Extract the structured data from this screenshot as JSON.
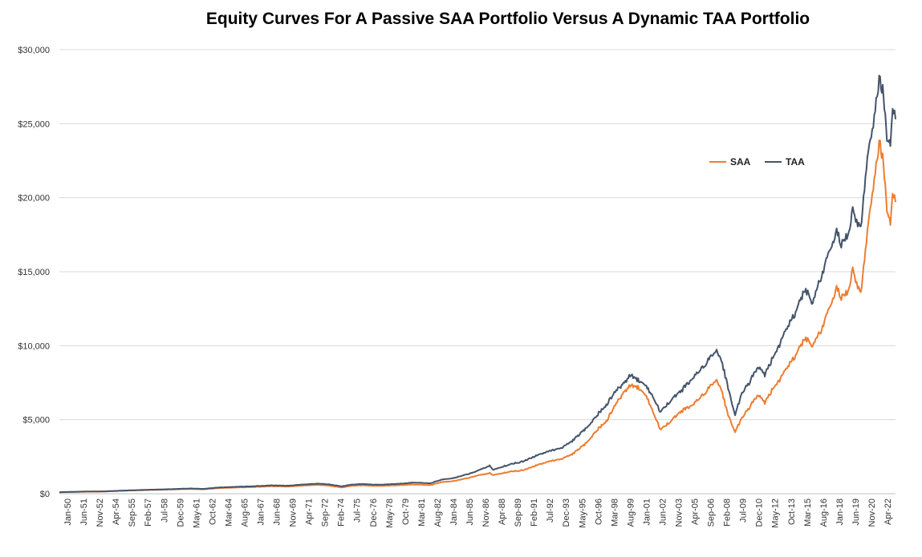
{
  "chart_data": {
    "type": "line",
    "title": "Equity Curves For A Passive SAA Portfolio Versus A Dynamic TAA Portfolio",
    "xlabel": "",
    "ylabel": "",
    "ylim": [
      0,
      30000
    ],
    "y_ticks": [
      0,
      5000,
      10000,
      15000,
      20000,
      25000,
      30000
    ],
    "y_tick_labels": [
      "$0",
      "$5,000",
      "$10,000",
      "$15,000",
      "$20,000",
      "$25,000",
      "$30,000"
    ],
    "x_tick_labels": [
      "Jan-50",
      "Jun-51",
      "Nov-52",
      "Apr-54",
      "Sep-55",
      "Feb-57",
      "Jul-58",
      "Dec-59",
      "May-61",
      "Oct-62",
      "Mar-64",
      "Aug-65",
      "Jan-67",
      "Jun-68",
      "Nov-69",
      "Apr-71",
      "Sep-72",
      "Feb-74",
      "Jul-75",
      "Dec-76",
      "May-78",
      "Oct-79",
      "Mar-81",
      "Aug-82",
      "Jan-84",
      "Jun-85",
      "Nov-86",
      "Apr-88",
      "Sep-89",
      "Feb-91",
      "Jul-92",
      "Dec-93",
      "May-95",
      "Oct-96",
      "Mar-98",
      "Aug-99",
      "Jan-01",
      "Jun-02",
      "Nov-03",
      "Apr-05",
      "Sep-06",
      "Feb-08",
      "Jul-09",
      "Dec-10",
      "May-12",
      "Oct-13",
      "Mar-15",
      "Aug-16",
      "Jan-18",
      "Jun-19",
      "Nov-20",
      "Apr-22"
    ],
    "x_range": [
      1950.0,
      2023.25
    ],
    "grid": true,
    "legend_position": "top-right",
    "series": [
      {
        "name": "SAA",
        "color": "#ED7D31",
        "points": [
          [
            1950.0,
            100
          ],
          [
            1952.0,
            130
          ],
          [
            1954.0,
            150
          ],
          [
            1956.0,
            210
          ],
          [
            1958.0,
            250
          ],
          [
            1960.0,
            290
          ],
          [
            1961.5,
            320
          ],
          [
            1962.5,
            290
          ],
          [
            1964.0,
            380
          ],
          [
            1966.0,
            430
          ],
          [
            1967.0,
            450
          ],
          [
            1968.5,
            500
          ],
          [
            1970.0,
            480
          ],
          [
            1971.0,
            530
          ],
          [
            1972.5,
            600
          ],
          [
            1973.5,
            550
          ],
          [
            1974.75,
            420
          ],
          [
            1975.5,
            520
          ],
          [
            1976.5,
            560
          ],
          [
            1978.0,
            520
          ],
          [
            1980.0,
            580
          ],
          [
            1981.0,
            620
          ],
          [
            1982.5,
            580
          ],
          [
            1983.5,
            780
          ],
          [
            1984.5,
            850
          ],
          [
            1985.5,
            1000
          ],
          [
            1986.5,
            1200
          ],
          [
            1987.7,
            1400
          ],
          [
            1988.0,
            1250
          ],
          [
            1989.5,
            1500
          ],
          [
            1990.7,
            1600
          ],
          [
            1991.5,
            1850
          ],
          [
            1993.0,
            2200
          ],
          [
            1994.0,
            2350
          ],
          [
            1995.0,
            2700
          ],
          [
            1996.0,
            3300
          ],
          [
            1997.0,
            4200
          ],
          [
            1998.0,
            5000
          ],
          [
            1998.7,
            6000
          ],
          [
            1999.5,
            6900
          ],
          [
            2000.0,
            7300
          ],
          [
            2000.7,
            7200
          ],
          [
            2001.5,
            6500
          ],
          [
            2002.0,
            5500
          ],
          [
            2002.7,
            4300
          ],
          [
            2003.5,
            4900
          ],
          [
            2004.5,
            5600
          ],
          [
            2005.5,
            6000
          ],
          [
            2006.5,
            6800
          ],
          [
            2007.5,
            7700
          ],
          [
            2008.0,
            7100
          ],
          [
            2008.5,
            5500
          ],
          [
            2009.2,
            4150
          ],
          [
            2009.8,
            5200
          ],
          [
            2010.5,
            5900
          ],
          [
            2011.2,
            6700
          ],
          [
            2011.8,
            6200
          ],
          [
            2012.5,
            7100
          ],
          [
            2013.5,
            8200
          ],
          [
            2014.5,
            9300
          ],
          [
            2015.3,
            10500
          ],
          [
            2016.0,
            10000
          ],
          [
            2016.7,
            11000
          ],
          [
            2017.5,
            12500
          ],
          [
            2018.1,
            13800
          ],
          [
            2018.5,
            13300
          ],
          [
            2019.0,
            13500
          ],
          [
            2019.5,
            15000
          ],
          [
            2020.2,
            13500
          ],
          [
            2020.7,
            17000
          ],
          [
            2021.3,
            21000
          ],
          [
            2021.9,
            23800
          ],
          [
            2022.2,
            22000
          ],
          [
            2022.5,
            19500
          ],
          [
            2022.8,
            18400
          ],
          [
            2023.0,
            20500
          ],
          [
            2023.25,
            19700
          ]
        ]
      },
      {
        "name": "TAA",
        "color": "#44546A",
        "points": [
          [
            1950.0,
            100
          ],
          [
            1952.0,
            140
          ],
          [
            1954.0,
            160
          ],
          [
            1956.0,
            220
          ],
          [
            1958.0,
            270
          ],
          [
            1960.0,
            310
          ],
          [
            1961.5,
            350
          ],
          [
            1962.5,
            320
          ],
          [
            1964.0,
            420
          ],
          [
            1966.0,
            480
          ],
          [
            1967.0,
            500
          ],
          [
            1968.5,
            560
          ],
          [
            1970.0,
            540
          ],
          [
            1971.0,
            600
          ],
          [
            1972.5,
            680
          ],
          [
            1973.5,
            640
          ],
          [
            1974.75,
            500
          ],
          [
            1975.5,
            600
          ],
          [
            1976.5,
            650
          ],
          [
            1978.0,
            600
          ],
          [
            1980.0,
            680
          ],
          [
            1981.0,
            750
          ],
          [
            1982.5,
            700
          ],
          [
            1983.5,
            950
          ],
          [
            1984.5,
            1050
          ],
          [
            1985.5,
            1250
          ],
          [
            1986.5,
            1500
          ],
          [
            1987.7,
            1900
          ],
          [
            1988.0,
            1600
          ],
          [
            1989.5,
            2000
          ],
          [
            1990.7,
            2200
          ],
          [
            1991.5,
            2500
          ],
          [
            1993.0,
            2900
          ],
          [
            1994.0,
            3100
          ],
          [
            1995.0,
            3600
          ],
          [
            1996.0,
            4300
          ],
          [
            1997.0,
            5200
          ],
          [
            1998.0,
            6100
          ],
          [
            1998.7,
            6900
          ],
          [
            1999.5,
            7500
          ],
          [
            2000.0,
            8000
          ],
          [
            2000.7,
            7700
          ],
          [
            2001.5,
            7200
          ],
          [
            2002.0,
            6500
          ],
          [
            2002.7,
            5500
          ],
          [
            2003.5,
            6300
          ],
          [
            2004.5,
            7000
          ],
          [
            2005.5,
            7800
          ],
          [
            2006.5,
            8700
          ],
          [
            2007.5,
            9700
          ],
          [
            2008.0,
            9100
          ],
          [
            2008.5,
            7400
          ],
          [
            2009.2,
            5300
          ],
          [
            2009.8,
            6900
          ],
          [
            2010.5,
            7600
          ],
          [
            2011.2,
            8600
          ],
          [
            2011.8,
            8100
          ],
          [
            2012.5,
            9200
          ],
          [
            2013.5,
            10800
          ],
          [
            2014.5,
            12200
          ],
          [
            2015.3,
            13800
          ],
          [
            2016.0,
            12900
          ],
          [
            2016.7,
            14600
          ],
          [
            2017.5,
            16300
          ],
          [
            2018.1,
            17600
          ],
          [
            2018.5,
            16900
          ],
          [
            2019.0,
            17300
          ],
          [
            2019.5,
            19000
          ],
          [
            2020.2,
            17900
          ],
          [
            2020.7,
            22000
          ],
          [
            2021.3,
            25300
          ],
          [
            2021.9,
            28100
          ],
          [
            2022.2,
            26600
          ],
          [
            2022.5,
            24400
          ],
          [
            2022.8,
            23800
          ],
          [
            2023.0,
            26300
          ],
          [
            2023.25,
            25300
          ]
        ]
      }
    ]
  }
}
